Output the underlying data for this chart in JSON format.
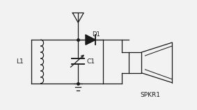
{
  "bg_color": "#f2f2f2",
  "line_color": "#1a1a1a",
  "label_L1": "L1",
  "label_D1": "D1",
  "label_C1": "C1",
  "label_SPKR1": "SPKR1",
  "figsize": [
    2.83,
    1.58
  ],
  "dpi": 100
}
